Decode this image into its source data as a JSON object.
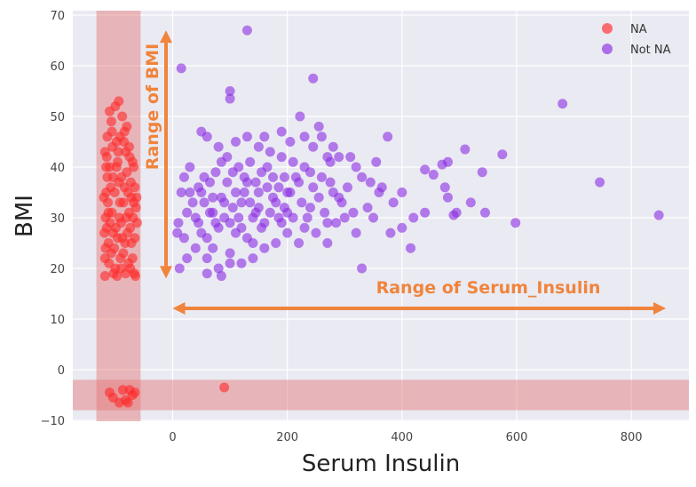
{
  "chart_data": {
    "type": "scatter",
    "title": "",
    "xlabel": "Serum Insulin",
    "ylabel": "BMI",
    "xlim": [
      -160,
      900
    ],
    "ylim": [
      -10,
      70
    ],
    "x_ticks": [
      0,
      200,
      400,
      600,
      800
    ],
    "y_ticks": [
      -10,
      0,
      10,
      20,
      30,
      40,
      50,
      60,
      70
    ],
    "grid": true,
    "background": "#eaeaf2",
    "legend": {
      "placement": "top-right",
      "entries": [
        "NA",
        "Not NA"
      ]
    },
    "series": [
      {
        "name": "NA",
        "color": "#ff2a2a",
        "points": [
          [
            -118,
            43
          ],
          [
            -115,
            42
          ],
          [
            -114,
            38
          ],
          [
            -116,
            35
          ],
          [
            -113,
            33
          ],
          [
            -117,
            30
          ],
          [
            -115,
            28
          ],
          [
            -112,
            25
          ],
          [
            -118,
            22
          ],
          [
            -110,
            40
          ],
          [
            -108,
            36
          ],
          [
            -106,
            31
          ],
          [
            -104,
            27
          ],
          [
            -102,
            24
          ],
          [
            -100,
            20
          ],
          [
            -98,
            45
          ],
          [
            -96,
            41
          ],
          [
            -94,
            37
          ],
          [
            -92,
            33
          ],
          [
            -90,
            29
          ],
          [
            -88,
            26
          ],
          [
            -86,
            23
          ],
          [
            -84,
            47
          ],
          [
            -82,
            43
          ],
          [
            -80,
            39
          ],
          [
            -78,
            35
          ],
          [
            -76,
            31
          ],
          [
            -74,
            28
          ],
          [
            -72,
            25
          ],
          [
            -70,
            22
          ],
          [
            -68,
            40
          ],
          [
            -66,
            36
          ],
          [
            -64,
            32
          ],
          [
            -62,
            29
          ],
          [
            -110,
            51
          ],
          [
            -107,
            49
          ],
          [
            -100,
            52
          ],
          [
            -94,
            53
          ],
          [
            -88,
            50
          ],
          [
            -80,
            48
          ],
          [
            -114,
            46
          ],
          [
            -105,
            44
          ],
          [
            -95,
            43
          ],
          [
            -85,
            45
          ],
          [
            -75,
            42
          ],
          [
            -70,
            41
          ],
          [
            -120,
            34
          ],
          [
            -119,
            27
          ],
          [
            -111,
            21
          ],
          [
            -103,
            19
          ],
          [
            -97,
            18.5
          ],
          [
            -90,
            20
          ],
          [
            -82,
            19
          ],
          [
            -74,
            20
          ],
          [
            -67,
            19
          ],
          [
            -65,
            18.5
          ],
          [
            -118,
            18.5
          ],
          [
            -109,
            29
          ],
          [
            -101,
            35
          ],
          [
            -93,
            30
          ],
          [
            -86,
            33
          ],
          [
            -79,
            27
          ],
          [
            -72,
            34
          ],
          [
            -66,
            26
          ],
          [
            -112,
            31
          ],
          [
            -104,
            38
          ],
          [
            -96,
            26
          ],
          [
            -89,
            38
          ],
          [
            -81,
            30
          ],
          [
            -73,
            37
          ],
          [
            -117,
            24
          ],
          [
            -107,
            23
          ],
          [
            -99,
            28
          ],
          [
            -91,
            22
          ],
          [
            -83,
            25
          ],
          [
            -77,
            21
          ],
          [
            -69,
            30
          ],
          [
            -63,
            34
          ],
          [
            -116,
            40
          ],
          [
            -106,
            47
          ],
          [
            -98,
            40
          ],
          [
            -92,
            46
          ],
          [
            -84,
            36
          ],
          [
            -76,
            44
          ],
          [
            -68,
            33
          ],
          [
            -110,
            -4.5
          ],
          [
            -104,
            -5.5
          ],
          [
            -93,
            -6.5
          ],
          [
            -87,
            -4
          ],
          [
            -82,
            -6
          ],
          [
            -75,
            -4
          ],
          [
            -70,
            -5
          ],
          [
            -66,
            -4.5
          ],
          [
            -78,
            -6.5
          ]
        ]
      },
      {
        "name": "Not NA",
        "color": "#8a2be2",
        "points": [
          [
            15,
            59.5
          ],
          [
            130,
            67
          ],
          [
            245,
            57.5
          ],
          [
            100,
            55
          ],
          [
            100,
            53.5
          ],
          [
            222,
            50
          ],
          [
            255,
            48
          ],
          [
            260,
            46
          ],
          [
            280,
            44
          ],
          [
            290,
            42
          ],
          [
            50,
            47
          ],
          [
            60,
            46
          ],
          [
            80,
            44
          ],
          [
            110,
            45
          ],
          [
            130,
            46
          ],
          [
            150,
            44
          ],
          [
            170,
            43
          ],
          [
            190,
            42
          ],
          [
            210,
            41
          ],
          [
            230,
            40
          ],
          [
            310,
            42
          ],
          [
            320,
            40
          ],
          [
            330,
            38
          ],
          [
            345,
            37
          ],
          [
            360,
            35
          ],
          [
            375,
            46
          ],
          [
            400,
            35
          ],
          [
            420,
            30
          ],
          [
            440,
            39.5
          ],
          [
            455,
            38.5
          ],
          [
            475,
            36
          ],
          [
            480,
            34
          ],
          [
            495,
            31
          ],
          [
            470,
            40.5
          ],
          [
            480,
            41
          ],
          [
            510,
            43.5
          ],
          [
            540,
            39
          ],
          [
            545,
            31
          ],
          [
            575,
            42.5
          ],
          [
            598,
            29
          ],
          [
            680,
            52.5
          ],
          [
            745,
            37
          ],
          [
            848,
            30.5
          ],
          [
            415,
            24
          ],
          [
            400,
            28
          ],
          [
            380,
            27
          ],
          [
            330,
            20
          ],
          [
            220,
            25
          ],
          [
            200,
            27
          ],
          [
            180,
            25
          ],
          [
            160,
            24
          ],
          [
            140,
            22
          ],
          [
            120,
            21
          ],
          [
            100,
            23
          ],
          [
            80,
            20
          ],
          [
            60,
            22
          ],
          [
            40,
            24
          ],
          [
            20,
            26
          ],
          [
            10,
            29
          ],
          [
            15,
            35
          ],
          [
            20,
            38
          ],
          [
            30,
            40
          ],
          [
            45,
            36
          ],
          [
            55,
            33
          ],
          [
            65,
            31
          ],
          [
            75,
            29
          ],
          [
            85,
            34
          ],
          [
            95,
            37
          ],
          [
            105,
            32
          ],
          [
            115,
            30
          ],
          [
            125,
            35
          ],
          [
            135,
            33
          ],
          [
            145,
            31
          ],
          [
            155,
            28
          ],
          [
            165,
            36
          ],
          [
            175,
            34
          ],
          [
            185,
            30
          ],
          [
            195,
            32
          ],
          [
            205,
            35
          ],
          [
            215,
            38
          ],
          [
            225,
            33
          ],
          [
            235,
            30
          ],
          [
            245,
            36
          ],
          [
            255,
            34
          ],
          [
            265,
            31
          ],
          [
            275,
            37
          ],
          [
            285,
            29
          ],
          [
            295,
            33
          ],
          [
            305,
            36
          ],
          [
            315,
            31
          ],
          [
            50,
            27
          ],
          [
            60,
            26
          ],
          [
            70,
            24
          ],
          [
            80,
            28
          ],
          [
            90,
            30
          ],
          [
            110,
            27
          ],
          [
            120,
            28
          ],
          [
            130,
            26
          ],
          [
            140,
            30
          ],
          [
            150,
            32
          ],
          [
            40,
            30
          ],
          [
            35,
            33
          ],
          [
            30,
            35
          ],
          [
            25,
            31
          ],
          [
            45,
            29
          ],
          [
            55,
            38
          ],
          [
            65,
            37
          ],
          [
            75,
            39
          ],
          [
            85,
            41
          ],
          [
            95,
            42
          ],
          [
            105,
            39
          ],
          [
            115,
            40
          ],
          [
            125,
            38
          ],
          [
            135,
            41
          ],
          [
            145,
            37
          ],
          [
            155,
            39
          ],
          [
            165,
            40
          ],
          [
            175,
            38
          ],
          [
            185,
            36
          ],
          [
            195,
            38
          ],
          [
            12,
            20
          ],
          [
            8,
            27
          ],
          [
            25,
            22
          ],
          [
            70,
            34
          ],
          [
            90,
            33
          ],
          [
            110,
            35
          ],
          [
            130,
            37
          ],
          [
            150,
            35
          ],
          [
            170,
            31
          ],
          [
            190,
            29
          ],
          [
            210,
            30
          ],
          [
            230,
            28
          ],
          [
            250,
            27
          ],
          [
            270,
            25
          ],
          [
            280,
            35
          ],
          [
            300,
            30
          ],
          [
            340,
            32
          ],
          [
            355,
            41
          ],
          [
            365,
            36
          ],
          [
            385,
            33
          ],
          [
            60,
            19
          ],
          [
            85,
            18.5
          ],
          [
            100,
            21
          ],
          [
            140,
            25
          ],
          [
            180,
            33
          ],
          [
            200,
            35
          ],
          [
            220,
            37
          ],
          [
            240,
            39
          ],
          [
            260,
            38
          ],
          [
            290,
            34
          ],
          [
            50,
            35
          ],
          [
            70,
            31
          ],
          [
            100,
            29
          ],
          [
            120,
            33
          ],
          [
            160,
            29
          ],
          [
            200,
            31
          ],
          [
            240,
            32
          ],
          [
            270,
            29
          ],
          [
            320,
            27
          ],
          [
            350,
            30
          ],
          [
            440,
            31
          ],
          [
            490,
            30.5
          ],
          [
            520,
            33
          ],
          [
            270,
            42
          ],
          [
            230,
            46
          ],
          [
            205,
            45
          ],
          [
            190,
            47
          ],
          [
            160,
            46
          ],
          [
            245,
            44
          ],
          [
            275,
            41
          ]
        ]
      }
    ],
    "highlight_bands": [
      {
        "axis": "x",
        "from": -133,
        "to": -56,
        "color": "#e57373"
      },
      {
        "axis": "y",
        "from": -8,
        "to": -2,
        "color": "#e57373"
      }
    ],
    "annotations": [
      {
        "text": "Range of BMI",
        "orientation": "vertical",
        "arrow_from": [
          -5,
          18
        ],
        "arrow_to": [
          -5,
          67
        ],
        "color": "#f0843c"
      },
      {
        "text": "Range of Serum_Insulin",
        "orientation": "horizontal",
        "arrow_from": [
          0,
          11
        ],
        "arrow_to": [
          860,
          11
        ],
        "color": "#f0843c"
      }
    ]
  }
}
